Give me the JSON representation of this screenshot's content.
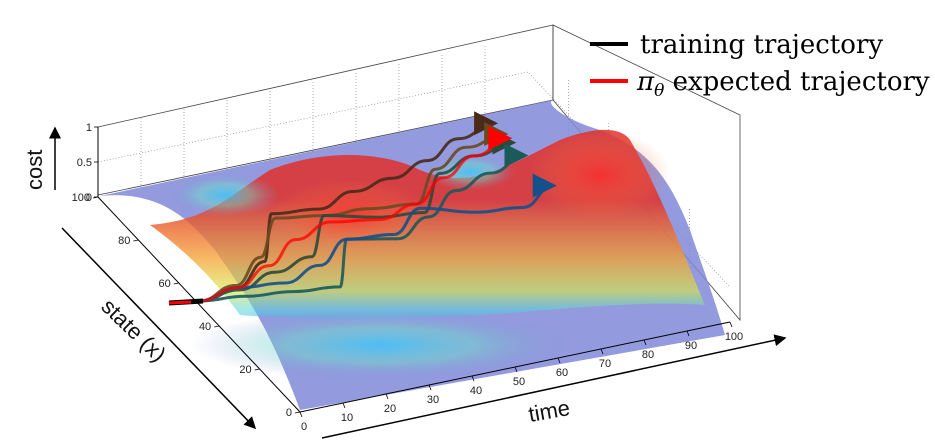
{
  "chart_data": {
    "type": "surface3d",
    "title": "",
    "xlabel": "time",
    "ylabel": "state (x)",
    "zlabel": "cost",
    "xlim": [
      0,
      100
    ],
    "ylim": [
      0,
      100
    ],
    "zlim": [
      0,
      1
    ],
    "x_ticks": [
      "0",
      "10",
      "20",
      "30",
      "40",
      "50",
      "60",
      "70",
      "80",
      "90",
      "100"
    ],
    "y_ticks": [
      "0",
      "20",
      "40",
      "60",
      "80",
      "100"
    ],
    "z_ticks": [
      "0",
      "0.5",
      "1"
    ],
    "grid": true,
    "legend_position": "top-right",
    "legend": [
      {
        "label": "training trajectory",
        "color": "#000000"
      },
      {
        "label": "π_θ expected trajectory",
        "color": "#ff0000"
      }
    ],
    "training_trajectories": [
      {
        "t": [
          0,
          10,
          20,
          30,
          40,
          50,
          60,
          70,
          80,
          90
        ],
        "x": [
          50,
          52,
          60,
          78,
          76,
          80,
          82,
          86,
          92,
          95
        ],
        "color": "#4a2a1a"
      },
      {
        "t": [
          0,
          10,
          20,
          30,
          40,
          50,
          60,
          70,
          80,
          90
        ],
        "x": [
          50,
          53,
          62,
          76,
          73,
          72,
          70,
          82,
          88,
          90
        ],
        "color": "#6a4a20"
      },
      {
        "t": [
          0,
          10,
          20,
          30,
          40,
          50,
          60,
          70,
          80,
          90
        ],
        "x": [
          50,
          51,
          55,
          58,
          73,
          68,
          66,
          80,
          84,
          86
        ],
        "color": "#2a4a3a"
      },
      {
        "t": [
          0,
          10,
          20,
          30,
          40,
          50,
          60,
          70,
          80,
          90
        ],
        "x": [
          50,
          48,
          46,
          44,
          62,
          58,
          64,
          72,
          76,
          80
        ],
        "color": "#1a5a5a"
      },
      {
        "t": [
          0,
          10,
          20,
          30,
          40,
          50,
          60,
          70,
          80,
          90
        ],
        "x": [
          50,
          52,
          50,
          54,
          62,
          60,
          68,
          62,
          60,
          66
        ],
        "color": "#14508a"
      }
    ],
    "expected_trajectory": {
      "t": [
        0,
        10,
        20,
        30,
        40,
        50,
        60,
        70,
        80,
        90
      ],
      "x": [
        50,
        52,
        58,
        66,
        70,
        67,
        70,
        78,
        84,
        88
      ],
      "color": "#ff0000"
    }
  }
}
